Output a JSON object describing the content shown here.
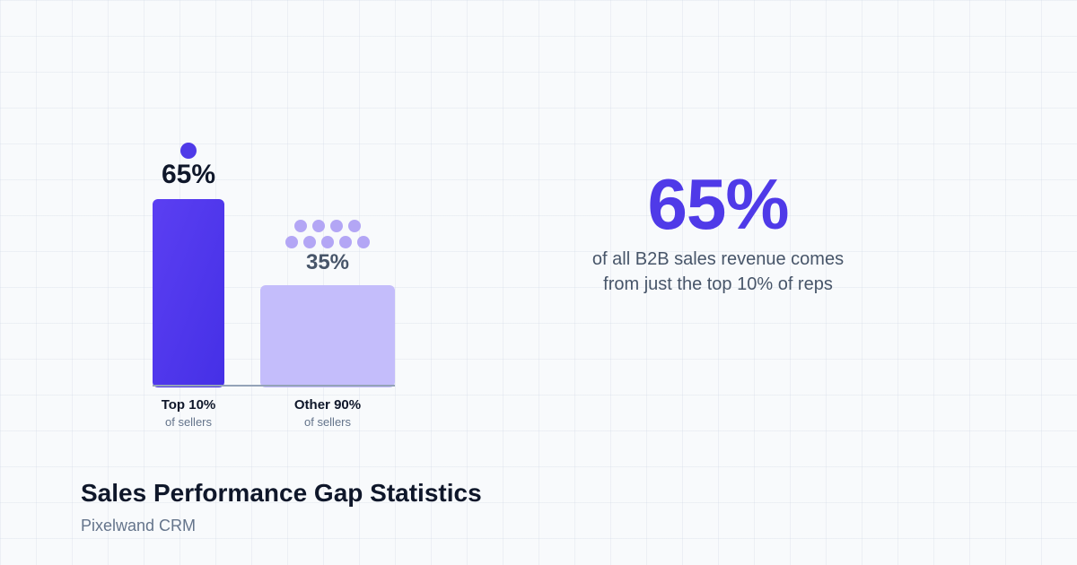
{
  "chart_data": {
    "type": "bar",
    "categories": [
      "Top 10%",
      "Other 90%"
    ],
    "sublabels": [
      "of sellers",
      "of sellers"
    ],
    "values": [
      65,
      35
    ],
    "value_labels": [
      "65%",
      "35%"
    ],
    "people_icons": [
      1,
      9
    ],
    "colors": [
      "#4f3ae8",
      "#c4bdfb"
    ],
    "dot_colors": [
      "#4f3ae8",
      "#b3a6f5"
    ],
    "label_colors": [
      "#0f172a",
      "#475569"
    ],
    "ylim": [
      0,
      65
    ]
  },
  "headline": {
    "stat": "65%",
    "line1": "of all B2B sales revenue comes",
    "line2": "from just the top 10% of reps"
  },
  "footer": {
    "title": "Sales Performance Gap Statistics",
    "brand": "Pixelwand CRM"
  }
}
